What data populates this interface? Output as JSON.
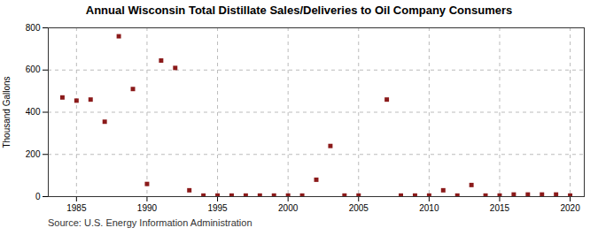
{
  "chart_data": {
    "type": "scatter",
    "title": "Annual Wisconsin Total Distillate Sales/Deliveries to Oil Company Consumers",
    "ylabel": "Thousand Gallons",
    "annotation": "Source: U.S. Energy Information Administration",
    "x": [
      1984,
      1985,
      1986,
      1987,
      1988,
      1989,
      1990,
      1991,
      1992,
      1993,
      1994,
      1995,
      1996,
      1997,
      1998,
      1999,
      2000,
      2001,
      2002,
      2003,
      2004,
      2005,
      2007,
      2008,
      2009,
      2010,
      2011,
      2012,
      2013,
      2014,
      2015,
      2016,
      2017,
      2018,
      2019,
      2020
    ],
    "values": [
      470,
      455,
      460,
      355,
      760,
      510,
      60,
      645,
      610,
      30,
      5,
      5,
      5,
      5,
      5,
      5,
      5,
      5,
      80,
      240,
      5,
      5,
      460,
      5,
      5,
      5,
      30,
      5,
      55,
      5,
      5,
      10,
      10,
      10,
      10,
      5
    ],
    "color": "#8b1a1a",
    "marker": "square",
    "xlim": [
      1983,
      2021
    ],
    "xticks": [
      1985,
      1990,
      1995,
      2000,
      2005,
      2010,
      2015,
      2020
    ],
    "ylim": [
      0,
      800
    ],
    "yticks": [
      0,
      200,
      400,
      600,
      800
    ],
    "grid": true
  }
}
